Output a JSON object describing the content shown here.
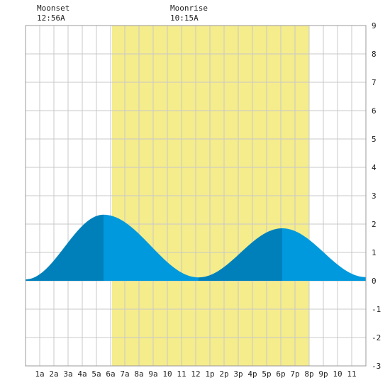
{
  "chart_data": {
    "type": "area",
    "title": "",
    "xlabel": "",
    "ylabel": "",
    "x_ticks": [
      "1a",
      "2a",
      "3a",
      "4a",
      "5a",
      "6a",
      "7a",
      "8a",
      "9a",
      "10",
      "11",
      "12",
      "1p",
      "2p",
      "3p",
      "4p",
      "5p",
      "6p",
      "7p",
      "8p",
      "9p",
      "10",
      "11"
    ],
    "x_range_hours": [
      0,
      24
    ],
    "y_ticks": [
      "-3",
      "-2",
      "-1",
      "0",
      "1",
      "2",
      "3",
      "4",
      "5",
      "6",
      "7",
      "8",
      "9"
    ],
    "ylim": [
      -3,
      9
    ],
    "grid": true,
    "daylight_band_hours": [
      6.1,
      20.0
    ],
    "moon_events": [
      {
        "label": "Moonset",
        "time": "12:56A",
        "hour": 0.93
      },
      {
        "label": "Moonrise",
        "time": "10:15A",
        "hour": 10.25
      }
    ],
    "tide_series": {
      "name": "",
      "extrema": [
        {
          "hour": 0.0,
          "value": 0.05
        },
        {
          "hour": 5.5,
          "value": 2.33
        },
        {
          "hour": 12.2,
          "value": 0.12
        },
        {
          "hour": 18.1,
          "value": 1.85
        },
        {
          "hour": 24.0,
          "value": 0.13
        }
      ]
    },
    "colors": {
      "daylight": "#f5ec8b",
      "water": "#0099dd",
      "water_dark": "#0080bb",
      "grid": "#c8c8c8"
    }
  }
}
